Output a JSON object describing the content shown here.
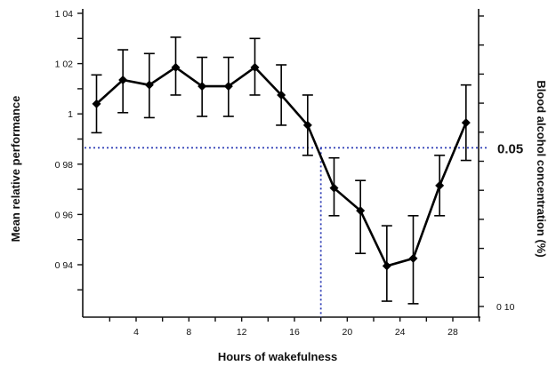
{
  "chart_data": {
    "type": "line",
    "xlabel": "Hours of wakefulness",
    "ylabel": "Mean relative performance",
    "y2label": "Blood alcohol concentration (%)",
    "xlim": [
      0,
      30
    ],
    "ylim": [
      0.93,
      1.04
    ],
    "xticks": [
      4,
      8,
      12,
      16,
      20,
      24,
      28
    ],
    "yticks": [
      0.94,
      0.96,
      0.98,
      1.0,
      1.02,
      1.04
    ],
    "ytick_labels": [
      "0 94",
      "0 96",
      "0 98",
      "1",
      "1 02",
      "1 04"
    ],
    "y2_tick_labels": [
      "0.05",
      "0 10"
    ],
    "series": [
      {
        "x": [
          1,
          3,
          5,
          7,
          9,
          11,
          13,
          15,
          17,
          19,
          21,
          23,
          25,
          27,
          29
        ],
        "values": [
          1.004,
          1.0135,
          1.0115,
          1.0185,
          1.011,
          1.011,
          1.0185,
          1.0075,
          0.9955,
          0.9705,
          0.9615,
          0.9395,
          0.9425,
          0.9715,
          0.9965
        ],
        "err_upper": [
          1.0155,
          1.0255,
          1.024,
          1.0305,
          1.0225,
          1.0225,
          1.03,
          1.0195,
          1.0075,
          0.9825,
          0.9735,
          0.9555,
          0.9595,
          0.9835,
          1.0115
        ],
        "err_lower": [
          0.9925,
          1.0005,
          0.9985,
          1.0075,
          0.999,
          0.999,
          1.0075,
          0.9955,
          0.9835,
          0.9595,
          0.9445,
          0.9255,
          0.9245,
          0.9595,
          0.9815
        ]
      }
    ],
    "reference": {
      "y": 0.9865,
      "x": 18,
      "label": "0.05"
    },
    "grid": false,
    "legend": "none"
  }
}
